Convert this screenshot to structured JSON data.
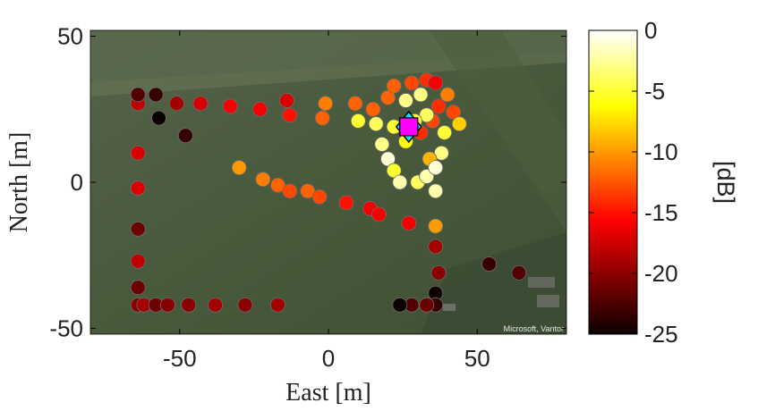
{
  "chart_data": {
    "type": "scatter",
    "xlabel": "East [m]",
    "ylabel": "North [m]",
    "xlim": [
      -80,
      80
    ],
    "ylim": [
      -52,
      52
    ],
    "xticks": [
      -50,
      0,
      50
    ],
    "yticks": [
      -50,
      0,
      50
    ],
    "background": "satellite map",
    "map_credit": "Microsoft, Vantor",
    "colorbar": {
      "label": "[dB]",
      "range": [
        -25,
        0
      ],
      "ticks": [
        0,
        -5,
        -10,
        -15,
        -20,
        -25
      ],
      "colormap": "hot"
    },
    "points": [
      {
        "x": -64,
        "y": 27,
        "v": -18
      },
      {
        "x": -64,
        "y": 30,
        "v": -22
      },
      {
        "x": -58,
        "y": 30,
        "v": -23
      },
      {
        "x": -51,
        "y": 27,
        "v": -19
      },
      {
        "x": -57,
        "y": 22,
        "v": -25
      },
      {
        "x": -48,
        "y": 16,
        "v": -23
      },
      {
        "x": -43,
        "y": 27,
        "v": -17
      },
      {
        "x": -33,
        "y": 26,
        "v": -16
      },
      {
        "x": -23,
        "y": 25,
        "v": -16
      },
      {
        "x": -14,
        "y": 28,
        "v": -17
      },
      {
        "x": -13,
        "y": 23,
        "v": -15
      },
      {
        "x": -2,
        "y": 22,
        "v": -12
      },
      {
        "x": -1,
        "y": 27,
        "v": -11
      },
      {
        "x": 9,
        "y": 27,
        "v": -12
      },
      {
        "x": 10,
        "y": 21,
        "v": -5
      },
      {
        "x": 15,
        "y": 25,
        "v": -12
      },
      {
        "x": 20,
        "y": 29,
        "v": -12
      },
      {
        "x": 16,
        "y": 20,
        "v": -4
      },
      {
        "x": 18,
        "y": 13,
        "v": -3
      },
      {
        "x": 22,
        "y": 19,
        "v": -5
      },
      {
        "x": 20,
        "y": 8,
        "v": -1
      },
      {
        "x": 22,
        "y": 4,
        "v": -5
      },
      {
        "x": 24,
        "y": 0,
        "v": -2
      },
      {
        "x": 30,
        "y": 0,
        "v": -4
      },
      {
        "x": 26,
        "y": 28,
        "v": -3
      },
      {
        "x": 22,
        "y": 33,
        "v": -12
      },
      {
        "x": 28,
        "y": 34,
        "v": -13
      },
      {
        "x": 31,
        "y": 30,
        "v": -3
      },
      {
        "x": 33,
        "y": 35,
        "v": -14
      },
      {
        "x": 36,
        "y": 34,
        "v": -16
      },
      {
        "x": 37,
        "y": 26,
        "v": -14
      },
      {
        "x": 40,
        "y": 30,
        "v": -11
      },
      {
        "x": 42,
        "y": 24,
        "v": -13
      },
      {
        "x": 44,
        "y": 20,
        "v": -8
      },
      {
        "x": 39,
        "y": 17,
        "v": -5
      },
      {
        "x": 38,
        "y": 10,
        "v": -3
      },
      {
        "x": 34,
        "y": 8,
        "v": -9
      },
      {
        "x": 33,
        "y": 2,
        "v": -2
      },
      {
        "x": 36,
        "y": 5,
        "v": -1
      },
      {
        "x": 36,
        "y": -3,
        "v": -2
      },
      {
        "x": 35,
        "y": 21,
        "v": -13
      },
      {
        "x": 33,
        "y": 23,
        "v": -4
      },
      {
        "x": 29,
        "y": 21,
        "v": -5
      },
      {
        "x": 26,
        "y": 14,
        "v": -6
      },
      {
        "x": 31,
        "y": 17,
        "v": -14
      },
      {
        "x": -30,
        "y": 5,
        "v": -10
      },
      {
        "x": -22,
        "y": 1,
        "v": -11
      },
      {
        "x": -17,
        "y": -1,
        "v": -12
      },
      {
        "x": -13,
        "y": -3,
        "v": -13
      },
      {
        "x": -7,
        "y": -3,
        "v": -12
      },
      {
        "x": -3,
        "y": -5,
        "v": -13
      },
      {
        "x": 6,
        "y": -7,
        "v": -15
      },
      {
        "x": 14,
        "y": -9,
        "v": -16
      },
      {
        "x": 17,
        "y": -11,
        "v": -16
      },
      {
        "x": 27,
        "y": -14,
        "v": -16
      },
      {
        "x": 36,
        "y": -15,
        "v": -10
      },
      {
        "x": 36,
        "y": -22,
        "v": -19
      },
      {
        "x": 37,
        "y": -31,
        "v": -20
      },
      {
        "x": 36,
        "y": -38,
        "v": -25
      },
      {
        "x": 36,
        "y": -42,
        "v": -23
      },
      {
        "x": 33,
        "y": -42,
        "v": -21
      },
      {
        "x": 28,
        "y": -42,
        "v": -22
      },
      {
        "x": 24,
        "y": -42,
        "v": -25
      },
      {
        "x": 54,
        "y": -28,
        "v": -23
      },
      {
        "x": 64,
        "y": -31,
        "v": -22
      },
      {
        "x": -64,
        "y": 10,
        "v": -17
      },
      {
        "x": -64,
        "y": -2,
        "v": -17
      },
      {
        "x": -64,
        "y": -16,
        "v": -21
      },
      {
        "x": -64,
        "y": -27,
        "v": -18
      },
      {
        "x": -64,
        "y": -36,
        "v": -21
      },
      {
        "x": -64,
        "y": -42,
        "v": -20
      },
      {
        "x": -62,
        "y": -42,
        "v": -19
      },
      {
        "x": -58,
        "y": -42,
        "v": -21
      },
      {
        "x": -54,
        "y": -42,
        "v": -20
      },
      {
        "x": -47,
        "y": -42,
        "v": -20
      },
      {
        "x": -38,
        "y": -42,
        "v": -19
      },
      {
        "x": -28,
        "y": -42,
        "v": -20
      },
      {
        "x": -17,
        "y": -42,
        "v": -19
      }
    ],
    "markers": [
      {
        "name": "transmitter",
        "shape": "diamond",
        "x": 27,
        "y": 19,
        "color": "#00e5ff"
      },
      {
        "name": "receiver",
        "shape": "square",
        "x": 27,
        "y": 19,
        "color": "#ff00ff"
      }
    ]
  }
}
